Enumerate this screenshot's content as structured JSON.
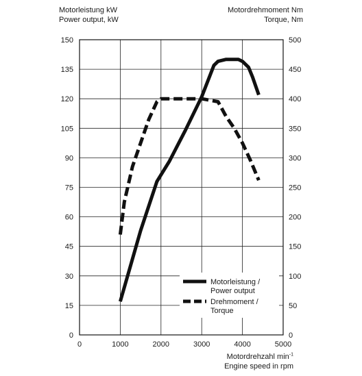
{
  "chart_data": {
    "type": "line",
    "left_axis_title": [
      "Motorleistung kW",
      "Power output, kW"
    ],
    "right_axis_title": [
      "Motordrehmoment Nm",
      "Torque, Nm"
    ],
    "x_axis_title": {
      "line1_base": "Motordrehzahl min",
      "line1_sup": "-1",
      "line2": "Engine speed in rpm"
    },
    "xlim": [
      0,
      5000
    ],
    "ylim_left": [
      0,
      150
    ],
    "ylim_right": [
      0,
      500
    ],
    "x_ticks": [
      "0",
      "1000",
      "2000",
      "3000",
      "4000",
      "5000"
    ],
    "y_left_ticks": [
      "0",
      "15",
      "30",
      "45",
      "60",
      "75",
      "90",
      "105",
      "120",
      "135",
      "150"
    ],
    "y_right_ticks": [
      "0",
      "50",
      "100",
      "150",
      "200",
      "250",
      "300",
      "350",
      "400",
      "450",
      "500"
    ],
    "grid": true,
    "legend_position": "bottom-right",
    "series": [
      {
        "name": "Motorleistung / Power output",
        "legend_lines": [
          "Motorleistung /",
          "Power output"
        ],
        "axis": "left",
        "style": "solid",
        "color": "#111111",
        "x": [
          1000,
          1500,
          1900,
          2200,
          2600,
          3000,
          3300,
          3400,
          3600,
          3900,
          4000,
          4150,
          4250,
          4400
        ],
        "y": [
          17,
          53,
          78,
          88,
          104,
          121,
          137,
          139,
          140,
          140,
          139,
          136,
          131,
          122
        ]
      },
      {
        "name": "Drehmoment / Torque",
        "legend_lines": [
          "Drehmoment /",
          "Torque"
        ],
        "axis": "right",
        "style": "dashed",
        "color": "#111111",
        "x": [
          1000,
          1100,
          1300,
          1500,
          1700,
          1900,
          2000,
          2500,
          3000,
          3400,
          3600,
          3800,
          4000,
          4200,
          4400
        ],
        "y": [
          170,
          225,
          285,
          325,
          365,
          395,
          400,
          400,
          400,
          395,
          370,
          350,
          325,
          295,
          262
        ]
      }
    ]
  }
}
